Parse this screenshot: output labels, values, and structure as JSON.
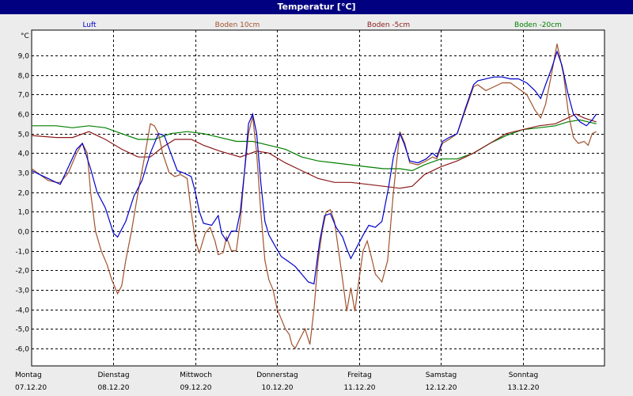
{
  "window": {
    "title": "Temperatur [°C]"
  },
  "colors": {
    "titlebar": "#000080",
    "plot_bg": "#ffffff",
    "frame_bg": "#ececec"
  },
  "chart_data": {
    "type": "line",
    "title": "Temperatur [°C]",
    "ylabel": "°C",
    "ylim": [
      -6.9,
      10.3
    ],
    "yticks": [
      -6,
      -5,
      -4,
      -3,
      -2,
      -1,
      0,
      1,
      2,
      3,
      4,
      5,
      6,
      7,
      8,
      9
    ],
    "ytick_labels": [
      "-6,0",
      "-5,0",
      "-4,0",
      "-3,0",
      "-2,0",
      "-1,0",
      "0,0",
      "1,0",
      "2,0",
      "3,0",
      "4,0",
      "5,0",
      "6,0",
      "7,0",
      "8,0",
      "9,0"
    ],
    "xlim": [
      0,
      7
    ],
    "days": [
      {
        "weekday": "Montag",
        "date": "07.12.20"
      },
      {
        "weekday": "Dienstag",
        "date": "08.12.20"
      },
      {
        "weekday": "Mittwoch",
        "date": "09.12.20"
      },
      {
        "weekday": "Donnerstag",
        "date": "10.12.20"
      },
      {
        "weekday": "Freitag",
        "date": "11.12.20"
      },
      {
        "weekday": "Samstag",
        "date": "12.12.20"
      },
      {
        "weekday": "Sonntag",
        "date": "13.12.20"
      }
    ],
    "grid": true,
    "legend": "top",
    "series": [
      {
        "name": "Luft",
        "color": "#0000cc",
        "points": [
          [
            0,
            3.1
          ],
          [
            0.1,
            2.9
          ],
          [
            0.2,
            2.7
          ],
          [
            0.3,
            2.5
          ],
          [
            0.35,
            2.4
          ],
          [
            0.45,
            3.3
          ],
          [
            0.55,
            4.2
          ],
          [
            0.62,
            4.5
          ],
          [
            0.72,
            3.2
          ],
          [
            0.8,
            2.0
          ],
          [
            0.9,
            1.2
          ],
          [
            1.0,
            -0.1
          ],
          [
            1.05,
            -0.3
          ],
          [
            1.15,
            0.5
          ],
          [
            1.25,
            1.8
          ],
          [
            1.35,
            2.6
          ],
          [
            1.45,
            4.0
          ],
          [
            1.55,
            5.0
          ],
          [
            1.62,
            4.9
          ],
          [
            1.7,
            4.0
          ],
          [
            1.78,
            3.1
          ],
          [
            1.85,
            3.0
          ],
          [
            1.95,
            2.8
          ],
          [
            2.0,
            2.0
          ],
          [
            2.05,
            1.0
          ],
          [
            2.1,
            0.4
          ],
          [
            2.2,
            0.3
          ],
          [
            2.28,
            0.8
          ],
          [
            2.32,
            -0.1
          ],
          [
            2.38,
            -0.5
          ],
          [
            2.44,
            0.0
          ],
          [
            2.5,
            0.0
          ],
          [
            2.55,
            1.0
          ],
          [
            2.6,
            3.0
          ],
          [
            2.65,
            5.5
          ],
          [
            2.7,
            6.0
          ],
          [
            2.75,
            5.0
          ],
          [
            2.8,
            2.5
          ],
          [
            2.85,
            0.5
          ],
          [
            2.9,
            -0.2
          ],
          [
            2.98,
            -0.8
          ],
          [
            3.05,
            -1.3
          ],
          [
            3.12,
            -1.5
          ],
          [
            3.22,
            -1.8
          ],
          [
            3.3,
            -2.2
          ],
          [
            3.38,
            -2.6
          ],
          [
            3.45,
            -2.7
          ],
          [
            3.52,
            -0.5
          ],
          [
            3.58,
            0.8
          ],
          [
            3.65,
            0.9
          ],
          [
            3.72,
            0.2
          ],
          [
            3.8,
            -0.3
          ],
          [
            3.85,
            -0.9
          ],
          [
            3.9,
            -1.4
          ],
          [
            3.95,
            -1.0
          ],
          [
            4.05,
            -0.2
          ],
          [
            4.12,
            0.3
          ],
          [
            4.2,
            0.2
          ],
          [
            4.28,
            0.5
          ],
          [
            4.36,
            2.2
          ],
          [
            4.42,
            3.8
          ],
          [
            4.5,
            5.0
          ],
          [
            4.55,
            4.5
          ],
          [
            4.62,
            3.6
          ],
          [
            4.72,
            3.5
          ],
          [
            4.82,
            3.7
          ],
          [
            4.9,
            4.0
          ],
          [
            4.95,
            3.8
          ],
          [
            5.02,
            4.6
          ],
          [
            5.1,
            4.8
          ],
          [
            5.2,
            5.0
          ],
          [
            5.3,
            6.3
          ],
          [
            5.4,
            7.5
          ],
          [
            5.45,
            7.7
          ],
          [
            5.55,
            7.8
          ],
          [
            5.65,
            7.9
          ],
          [
            5.75,
            7.9
          ],
          [
            5.85,
            7.8
          ],
          [
            5.95,
            7.8
          ],
          [
            6.05,
            7.6
          ],
          [
            6.15,
            7.2
          ],
          [
            6.22,
            6.8
          ],
          [
            6.28,
            7.5
          ],
          [
            6.35,
            8.3
          ],
          [
            6.42,
            9.2
          ],
          [
            6.48,
            8.5
          ],
          [
            6.55,
            7.1
          ],
          [
            6.62,
            6.0
          ],
          [
            6.7,
            5.6
          ],
          [
            6.78,
            5.4
          ],
          [
            6.85,
            5.7
          ],
          [
            6.9,
            6.0
          ]
        ]
      },
      {
        "name": "Boden 10cm",
        "color": "#a0522d",
        "points": [
          [
            0,
            3.2
          ],
          [
            0.1,
            2.9
          ],
          [
            0.2,
            2.6
          ],
          [
            0.3,
            2.5
          ],
          [
            0.35,
            2.5
          ],
          [
            0.45,
            3.0
          ],
          [
            0.55,
            4.0
          ],
          [
            0.62,
            4.5
          ],
          [
            0.68,
            4.0
          ],
          [
            0.72,
            2.0
          ],
          [
            0.78,
            0.0
          ],
          [
            0.85,
            -1.0
          ],
          [
            0.92,
            -1.7
          ],
          [
            0.98,
            -2.5
          ],
          [
            1.05,
            -3.2
          ],
          [
            1.1,
            -2.8
          ],
          [
            1.15,
            -1.5
          ],
          [
            1.22,
            0.0
          ],
          [
            1.3,
            2.0
          ],
          [
            1.38,
            3.8
          ],
          [
            1.45,
            5.5
          ],
          [
            1.5,
            5.4
          ],
          [
            1.55,
            5.0
          ],
          [
            1.6,
            4.0
          ],
          [
            1.68,
            3.0
          ],
          [
            1.75,
            2.8
          ],
          [
            1.82,
            2.9
          ],
          [
            1.9,
            2.7
          ],
          [
            1.95,
            1.0
          ],
          [
            2.0,
            -0.5
          ],
          [
            2.05,
            -1.1
          ],
          [
            2.12,
            -0.1
          ],
          [
            2.18,
            0.2
          ],
          [
            2.24,
            -0.5
          ],
          [
            2.28,
            -1.2
          ],
          [
            2.34,
            -1.1
          ],
          [
            2.38,
            -0.3
          ],
          [
            2.44,
            -1.0
          ],
          [
            2.5,
            -1.0
          ],
          [
            2.55,
            0.5
          ],
          [
            2.6,
            3.0
          ],
          [
            2.65,
            5.0
          ],
          [
            2.7,
            5.9
          ],
          [
            2.75,
            4.0
          ],
          [
            2.8,
            1.0
          ],
          [
            2.85,
            -1.5
          ],
          [
            2.9,
            -2.5
          ],
          [
            2.95,
            -3.0
          ],
          [
            3.0,
            -4.0
          ],
          [
            3.05,
            -4.5
          ],
          [
            3.1,
            -5.0
          ],
          [
            3.15,
            -5.3
          ],
          [
            3.18,
            -5.8
          ],
          [
            3.22,
            -6.0
          ],
          [
            3.28,
            -5.5
          ],
          [
            3.34,
            -5.0
          ],
          [
            3.4,
            -5.8
          ],
          [
            3.45,
            -4.0
          ],
          [
            3.5,
            -1.5
          ],
          [
            3.55,
            0.0
          ],
          [
            3.6,
            1.0
          ],
          [
            3.65,
            1.1
          ],
          [
            3.7,
            0.5
          ],
          [
            3.75,
            -1.0
          ],
          [
            3.8,
            -2.5
          ],
          [
            3.85,
            -4.1
          ],
          [
            3.9,
            -2.9
          ],
          [
            3.95,
            -4.1
          ],
          [
            4.0,
            -2.5
          ],
          [
            4.05,
            -1.0
          ],
          [
            4.1,
            -0.5
          ],
          [
            4.15,
            -1.3
          ],
          [
            4.2,
            -2.2
          ],
          [
            4.28,
            -2.6
          ],
          [
            4.35,
            -1.5
          ],
          [
            4.42,
            2.0
          ],
          [
            4.5,
            5.1
          ],
          [
            4.56,
            4.5
          ],
          [
            4.62,
            3.5
          ],
          [
            4.72,
            3.4
          ],
          [
            4.82,
            3.6
          ],
          [
            4.9,
            3.8
          ],
          [
            4.95,
            3.7
          ],
          [
            5.02,
            4.5
          ],
          [
            5.1,
            4.7
          ],
          [
            5.2,
            5.0
          ],
          [
            5.3,
            6.2
          ],
          [
            5.4,
            7.4
          ],
          [
            5.45,
            7.5
          ],
          [
            5.55,
            7.2
          ],
          [
            5.65,
            7.4
          ],
          [
            5.75,
            7.6
          ],
          [
            5.85,
            7.6
          ],
          [
            5.95,
            7.3
          ],
          [
            6.05,
            7.0
          ],
          [
            6.15,
            6.2
          ],
          [
            6.22,
            5.8
          ],
          [
            6.28,
            6.5
          ],
          [
            6.35,
            8.0
          ],
          [
            6.42,
            9.6
          ],
          [
            6.5,
            8.0
          ],
          [
            6.56,
            6.0
          ],
          [
            6.62,
            4.8
          ],
          [
            6.68,
            4.5
          ],
          [
            6.75,
            4.6
          ],
          [
            6.8,
            4.4
          ],
          [
            6.85,
            5.0
          ],
          [
            6.9,
            5.1
          ]
        ]
      },
      {
        "name": "Boden -5cm",
        "color": "#8b1a1a",
        "points": [
          [
            0,
            4.9
          ],
          [
            0.3,
            4.8
          ],
          [
            0.5,
            4.8
          ],
          [
            0.7,
            5.1
          ],
          [
            0.9,
            4.7
          ],
          [
            1.1,
            4.2
          ],
          [
            1.3,
            3.8
          ],
          [
            1.45,
            3.8
          ],
          [
            1.6,
            4.3
          ],
          [
            1.75,
            4.7
          ],
          [
            1.95,
            4.7
          ],
          [
            2.1,
            4.4
          ],
          [
            2.3,
            4.1
          ],
          [
            2.55,
            3.8
          ],
          [
            2.75,
            4.1
          ],
          [
            2.9,
            4.0
          ],
          [
            3.1,
            3.5
          ],
          [
            3.3,
            3.1
          ],
          [
            3.5,
            2.7
          ],
          [
            3.7,
            2.5
          ],
          [
            3.9,
            2.5
          ],
          [
            4.1,
            2.4
          ],
          [
            4.3,
            2.3
          ],
          [
            4.5,
            2.2
          ],
          [
            4.65,
            2.3
          ],
          [
            4.8,
            2.9
          ],
          [
            5.0,
            3.3
          ],
          [
            5.2,
            3.6
          ],
          [
            5.4,
            4.0
          ],
          [
            5.6,
            4.5
          ],
          [
            5.8,
            5.0
          ],
          [
            6.0,
            5.2
          ],
          [
            6.2,
            5.4
          ],
          [
            6.4,
            5.5
          ],
          [
            6.55,
            5.8
          ],
          [
            6.65,
            6.0
          ],
          [
            6.75,
            5.8
          ],
          [
            6.9,
            5.6
          ]
        ]
      },
      {
        "name": "Boden -20cm",
        "color": "#008000",
        "points": [
          [
            0,
            5.4
          ],
          [
            0.3,
            5.4
          ],
          [
            0.5,
            5.3
          ],
          [
            0.7,
            5.4
          ],
          [
            0.9,
            5.3
          ],
          [
            1.1,
            5.0
          ],
          [
            1.3,
            4.7
          ],
          [
            1.5,
            4.7
          ],
          [
            1.7,
            5.0
          ],
          [
            1.9,
            5.1
          ],
          [
            2.1,
            5.0
          ],
          [
            2.3,
            4.8
          ],
          [
            2.5,
            4.6
          ],
          [
            2.7,
            4.6
          ],
          [
            2.9,
            4.4
          ],
          [
            3.1,
            4.2
          ],
          [
            3.3,
            3.8
          ],
          [
            3.5,
            3.6
          ],
          [
            3.7,
            3.5
          ],
          [
            3.9,
            3.4
          ],
          [
            4.1,
            3.3
          ],
          [
            4.3,
            3.2
          ],
          [
            4.5,
            3.2
          ],
          [
            4.65,
            3.1
          ],
          [
            4.8,
            3.4
          ],
          [
            5.0,
            3.7
          ],
          [
            5.2,
            3.7
          ],
          [
            5.4,
            4.0
          ],
          [
            5.6,
            4.5
          ],
          [
            5.8,
            4.9
          ],
          [
            6.0,
            5.2
          ],
          [
            6.2,
            5.3
          ],
          [
            6.4,
            5.4
          ],
          [
            6.55,
            5.6
          ],
          [
            6.7,
            5.7
          ],
          [
            6.8,
            5.6
          ],
          [
            6.9,
            5.5
          ]
        ]
      }
    ]
  }
}
